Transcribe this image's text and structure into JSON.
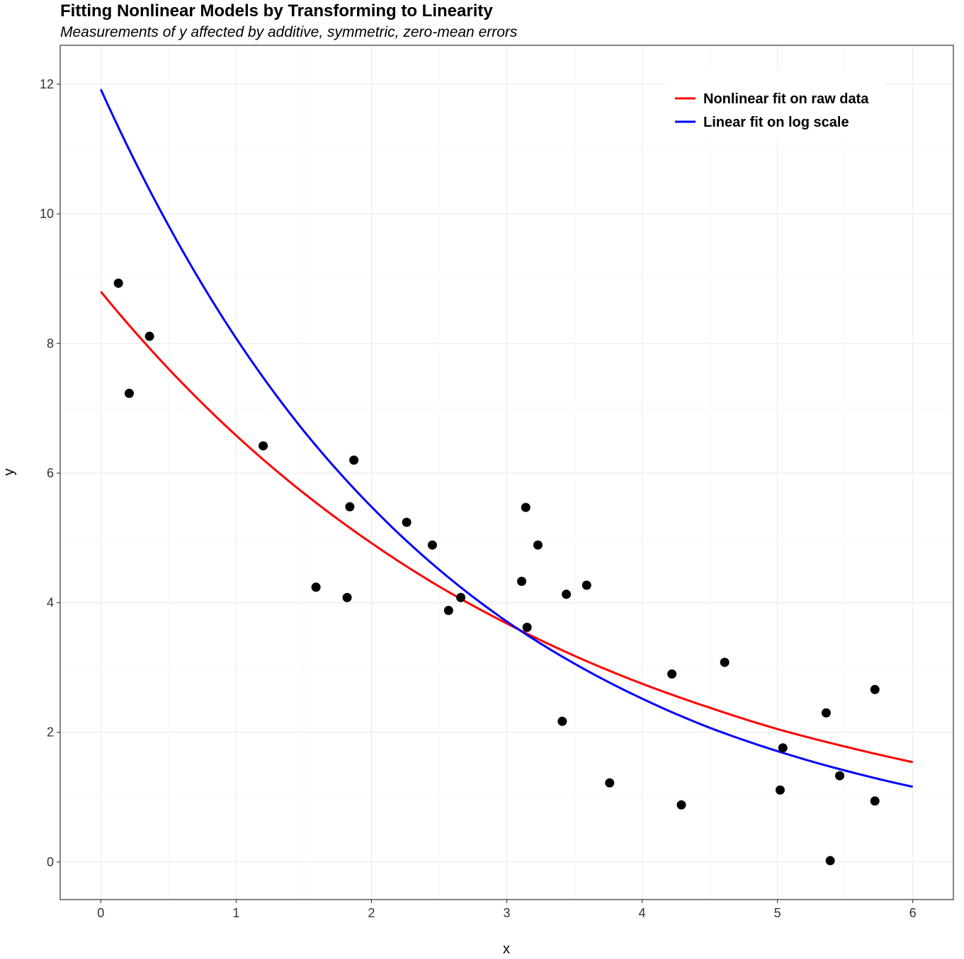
{
  "chart_data": {
    "type": "scatter",
    "title": "Fitting Nonlinear Models by Transforming to Linearity",
    "subtitle": "Measurements of y affected by additive, symmetric, zero-mean errors",
    "xlabel": "x",
    "ylabel": "y",
    "xlim": [
      -0.3,
      6.3
    ],
    "ylim": [
      -0.58,
      12.6
    ],
    "x_ticks": [
      0,
      1,
      2,
      3,
      4,
      5,
      6
    ],
    "y_ticks": [
      0,
      2,
      4,
      6,
      8,
      10,
      12
    ],
    "x_tick_labels": [
      "0",
      "1",
      "2",
      "3",
      "4",
      "5",
      "6"
    ],
    "y_tick_labels": [
      "0",
      "2",
      "4",
      "6",
      "8",
      "10",
      "12"
    ],
    "grid": true,
    "legend_position": "top-right",
    "points": [
      {
        "x": 0.13,
        "y": 8.93
      },
      {
        "x": 0.21,
        "y": 7.23
      },
      {
        "x": 0.36,
        "y": 8.11
      },
      {
        "x": 1.2,
        "y": 6.42
      },
      {
        "x": 1.59,
        "y": 4.24
      },
      {
        "x": 1.82,
        "y": 4.08
      },
      {
        "x": 1.84,
        "y": 5.48
      },
      {
        "x": 1.87,
        "y": 6.2
      },
      {
        "x": 2.26,
        "y": 5.24
      },
      {
        "x": 2.45,
        "y": 4.89
      },
      {
        "x": 2.57,
        "y": 3.88
      },
      {
        "x": 2.66,
        "y": 4.08
      },
      {
        "x": 3.11,
        "y": 4.33
      },
      {
        "x": 3.14,
        "y": 5.47
      },
      {
        "x": 3.15,
        "y": 3.62
      },
      {
        "x": 3.23,
        "y": 4.89
      },
      {
        "x": 3.41,
        "y": 2.17
      },
      {
        "x": 3.44,
        "y": 4.13
      },
      {
        "x": 3.59,
        "y": 4.27
      },
      {
        "x": 3.76,
        "y": 1.22
      },
      {
        "x": 4.22,
        "y": 2.9
      },
      {
        "x": 4.29,
        "y": 0.88
      },
      {
        "x": 4.61,
        "y": 3.08
      },
      {
        "x": 5.02,
        "y": 1.11
      },
      {
        "x": 5.04,
        "y": 1.76
      },
      {
        "x": 5.36,
        "y": 2.3
      },
      {
        "x": 5.39,
        "y": 0.02
      },
      {
        "x": 5.46,
        "y": 1.33
      },
      {
        "x": 5.72,
        "y": 0.94
      },
      {
        "x": 5.72,
        "y": 2.66
      }
    ],
    "series": [
      {
        "name": "Nonlinear fit on raw data",
        "color": "#ff0000",
        "x": [
          0,
          0.5,
          1,
          1.5,
          2,
          2.5,
          3,
          3.5,
          4,
          4.5,
          5,
          5.5,
          6
        ],
        "y": [
          8.8,
          7.61,
          6.58,
          5.69,
          4.92,
          4.25,
          3.68,
          3.18,
          2.75,
          2.38,
          2.05,
          1.78,
          1.54
        ]
      },
      {
        "name": "Linear fit on log scale",
        "color": "#0000ff",
        "x": [
          0,
          0.5,
          1,
          1.5,
          2,
          2.5,
          3,
          3.5,
          4,
          4.5,
          5,
          5.5,
          6
        ],
        "y": [
          11.92,
          9.82,
          8.08,
          6.65,
          5.48,
          4.51,
          3.71,
          3.06,
          2.52,
          2.07,
          1.71,
          1.41,
          1.16
        ]
      }
    ]
  }
}
